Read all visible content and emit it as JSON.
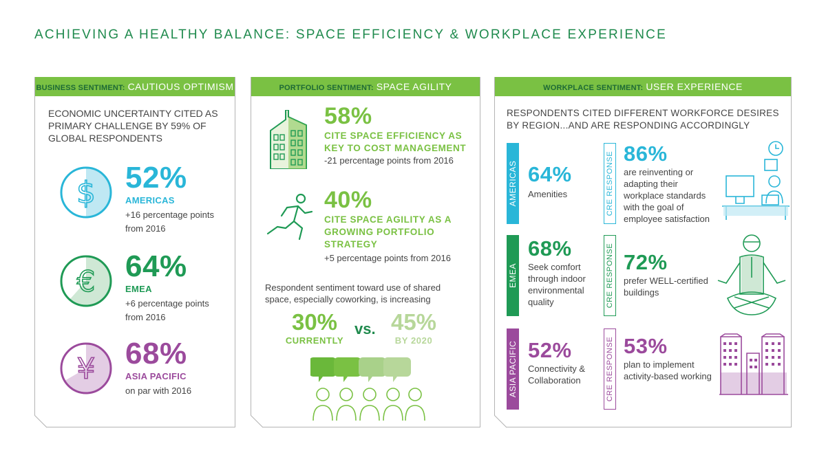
{
  "title": "ACHIEVING A HEALTHY BALANCE: SPACE EFFICIENCY & WORKPLACE EXPERIENCE",
  "colors": {
    "green_dark": "#1f8a4d",
    "green_light": "#7ac143",
    "cyan": "#29b6d8",
    "purple": "#9b4a9c",
    "pale_green": "#b7d79a"
  },
  "panel1": {
    "header_a": "BUSINESS SENTIMENT:",
    "header_b": "CAUTIOUS OPTIMISM",
    "intro": "ECONOMIC UNCERTAINTY CITED AS PRIMARY CHALLENGE BY 59% OF GLOBAL RESPONDENTS",
    "rows": [
      {
        "icon": "dollar-icon",
        "glyph": "$",
        "pct": "52%",
        "region": "AMERICAS",
        "change": "+16 percentage points from 2016",
        "fill_fraction": 0.52
      },
      {
        "icon": "euro-icon",
        "glyph": "€",
        "pct": "64%",
        "region": "EMEA",
        "change": "+6 percentage points from 2016",
        "fill_fraction": 0.64
      },
      {
        "icon": "yen-icon",
        "glyph": "¥",
        "pct": "68%",
        "region": "ASIA PACIFIC",
        "change": "on par with 2016",
        "fill_fraction": 0.68
      }
    ]
  },
  "panel2": {
    "header_a": "PORTFOLIO SENTIMENT:",
    "header_b": "SPACE AGILITY",
    "stat1": {
      "icon": "building-icon",
      "pct": "58%",
      "line1": "CITE SPACE EFFICIENCY AS",
      "line2": "KEY TO COST MANAGEMENT",
      "change": "-21 percentage points from 2016"
    },
    "stat2": {
      "icon": "running-person-icon",
      "pct": "40%",
      "line1": "CITE SPACE AGILITY AS A",
      "line2": "GROWING PORTFOLIO",
      "line3": "STRATEGY",
      "change": "+5 percentage points from 2016"
    },
    "shared_text1": "Respondent sentiment toward use of shared",
    "shared_text2": "space, especially coworking, is increasing",
    "current_pct": "30%",
    "current_label": "CURRENTLY",
    "vs": "vs.",
    "future_pct": "45%",
    "future_label": "BY 2020"
  },
  "panel3": {
    "header_a": "WORKPLACE SENTIMENT:",
    "header_b": "USER EXPERIENCE",
    "intro_line1": "RESPONDENTS CITED DIFFERENT WORKFORCE DESIRES",
    "intro_line2": "BY REGION...AND ARE RESPONDING ACCORDINGLY",
    "cre_label": "CRE RESPONSE",
    "regions": [
      {
        "name": "AMERICAS",
        "pct": "64%",
        "desc": "Amenities",
        "cre_pct": "86%",
        "cre_desc": "are reinventing or adapting their workplace standards with the goal of employee satisfaction",
        "icon": "office-desk-icon"
      },
      {
        "name": "EMEA",
        "pct": "68%",
        "desc": "Seek comfort through indoor environmental quality",
        "cre_pct": "72%",
        "cre_desc": "prefer WELL-certified buildings",
        "icon": "meditating-person-icon"
      },
      {
        "name": "ASIA PACIFIC",
        "pct": "52%",
        "desc": "Connectivity & Collaboration",
        "cre_pct": "53%",
        "cre_desc": "plan to implement activity-based working",
        "icon": "office-towers-icon"
      }
    ]
  }
}
